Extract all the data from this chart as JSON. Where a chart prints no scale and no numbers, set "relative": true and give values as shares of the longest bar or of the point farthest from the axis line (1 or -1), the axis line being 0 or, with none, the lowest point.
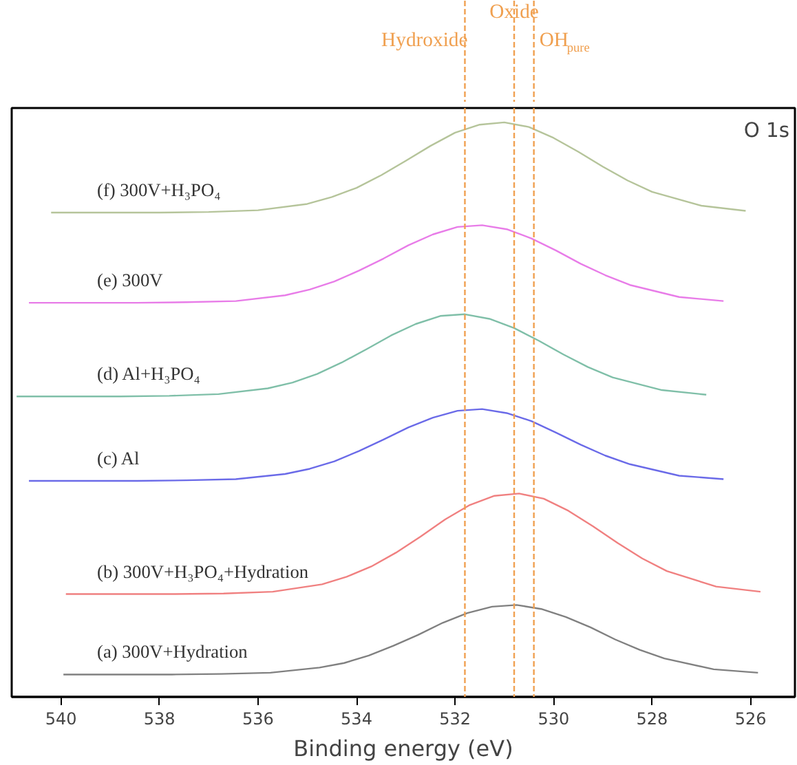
{
  "chart_data": {
    "type": "line",
    "relative": true,
    "xlabel": "Binding energy (eV)",
    "xlim": [
      541,
      525.1
    ],
    "xticks": [
      540,
      538,
      536,
      534,
      532,
      530,
      528,
      526
    ],
    "grid": false,
    "marker": "none",
    "line_style": "solid",
    "annotations": [
      "O 1s"
    ],
    "ref_lines": [
      {
        "axis": "x",
        "value": 531.8,
        "label": "Hydroxide",
        "color": "#f0a050",
        "line_style": "dashed"
      },
      {
        "axis": "x",
        "value": 530.8,
        "label": "Oxide",
        "color": "#f0a050",
        "line_style": "dashed"
      },
      {
        "axis": "x",
        "value": 530.4,
        "label": "OH$_{pure}$",
        "color": "#f0a050",
        "line_style": "dashed"
      }
    ],
    "series": [
      {
        "name": "(f) 300V+H₃PO₄",
        "color": "#b5c49a",
        "x": [
          540.2,
          539,
          538,
          537,
          536,
          535,
          534.5,
          534,
          533.5,
          533,
          532.5,
          532,
          531.5,
          531,
          530.5,
          530,
          529.5,
          529,
          528.5,
          528,
          527,
          526.1
        ],
        "values": [
          0.843,
          0.843,
          0.843,
          0.844,
          0.847,
          0.858,
          0.87,
          0.886,
          0.908,
          0.933,
          0.959,
          0.982,
          0.996,
          1.0,
          0.992,
          0.973,
          0.949,
          0.923,
          0.899,
          0.879,
          0.855,
          0.846
        ]
      },
      {
        "name": "(e) 300V",
        "color": "#e87ce8",
        "x": [
          540.65,
          539.45,
          538.45,
          537.45,
          536.45,
          535.45,
          534.95,
          534.45,
          533.95,
          533.45,
          532.95,
          532.45,
          531.95,
          531.45,
          530.95,
          530.45,
          529.95,
          529.45,
          528.95,
          528.45,
          527.45,
          526.55
        ],
        "values": [
          0.686,
          0.686,
          0.686,
          0.687,
          0.689,
          0.699,
          0.709,
          0.723,
          0.742,
          0.763,
          0.786,
          0.805,
          0.818,
          0.821,
          0.814,
          0.798,
          0.777,
          0.754,
          0.734,
          0.717,
          0.696,
          0.689
        ]
      },
      {
        "name": "(d) Al+H₃PO₄",
        "color": "#7fbfa8",
        "x": [
          540.9,
          539.8,
          538.8,
          537.8,
          536.8,
          535.8,
          535.3,
          534.8,
          534.3,
          533.8,
          533.3,
          532.8,
          532.3,
          531.8,
          531.3,
          530.8,
          530.3,
          529.8,
          529.3,
          528.8,
          527.8,
          526.9
        ],
        "values": [
          0.523,
          0.523,
          0.523,
          0.524,
          0.527,
          0.537,
          0.547,
          0.562,
          0.582,
          0.605,
          0.629,
          0.649,
          0.663,
          0.666,
          0.658,
          0.642,
          0.62,
          0.596,
          0.574,
          0.556,
          0.534,
          0.526
        ]
      },
      {
        "name": "(c) Al",
        "color": "#6a6ae8",
        "x": [
          540.65,
          539.45,
          538.45,
          537.45,
          536.45,
          535.45,
          534.95,
          534.45,
          533.95,
          533.45,
          532.95,
          532.45,
          531.95,
          531.45,
          530.95,
          530.45,
          529.95,
          529.45,
          528.95,
          528.45,
          527.45,
          526.55
        ],
        "values": [
          0.376,
          0.376,
          0.376,
          0.377,
          0.379,
          0.388,
          0.397,
          0.41,
          0.428,
          0.448,
          0.469,
          0.486,
          0.498,
          0.501,
          0.494,
          0.48,
          0.46,
          0.439,
          0.42,
          0.405,
          0.385,
          0.379
        ]
      },
      {
        "name": "(b) 300V+H₃PO₄+Hydration",
        "color": "#f08080",
        "x": [
          539.9,
          538.7,
          537.7,
          536.7,
          535.7,
          534.7,
          534.2,
          533.7,
          533.2,
          532.7,
          532.2,
          531.7,
          531.2,
          530.7,
          530.2,
          529.7,
          529.2,
          528.7,
          528.2,
          527.7,
          526.7,
          525.8
        ],
        "values": [
          0.179,
          0.179,
          0.179,
          0.18,
          0.183,
          0.196,
          0.209,
          0.227,
          0.251,
          0.279,
          0.309,
          0.334,
          0.35,
          0.354,
          0.345,
          0.324,
          0.297,
          0.268,
          0.241,
          0.219,
          0.192,
          0.183
        ]
      },
      {
        "name": "(a) 300V+Hydration",
        "color": "#808080",
        "x": [
          539.95,
          538.75,
          537.75,
          536.75,
          535.75,
          534.75,
          534.25,
          533.75,
          533.25,
          532.75,
          532.25,
          531.75,
          531.25,
          530.75,
          530.25,
          529.75,
          529.25,
          528.75,
          528.25,
          527.75,
          526.75,
          525.85
        ],
        "values": [
          0.039,
          0.039,
          0.039,
          0.04,
          0.042,
          0.051,
          0.059,
          0.072,
          0.089,
          0.108,
          0.129,
          0.146,
          0.157,
          0.16,
          0.153,
          0.139,
          0.121,
          0.1,
          0.082,
          0.067,
          0.048,
          0.042
        ]
      }
    ]
  }
}
